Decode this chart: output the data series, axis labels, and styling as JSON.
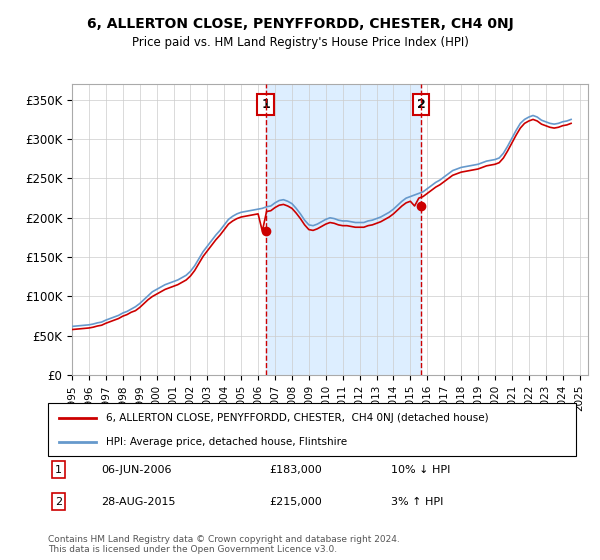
{
  "title": "6, ALLERTON CLOSE, PENYFFORDD, CHESTER, CH4 0NJ",
  "subtitle": "Price paid vs. HM Land Registry's House Price Index (HPI)",
  "ylabel": "",
  "ylim": [
    0,
    370000
  ],
  "yticks": [
    0,
    50000,
    100000,
    150000,
    200000,
    250000,
    300000,
    350000
  ],
  "ytick_labels": [
    "£0",
    "£50K",
    "£100K",
    "£150K",
    "£200K",
    "£250K",
    "£300K",
    "£350K"
  ],
  "xlim_start": 1995.0,
  "xlim_end": 2025.5,
  "sale1_date": 2006.44,
  "sale1_price": 183000,
  "sale1_label": "1",
  "sale2_date": 2015.65,
  "sale2_price": 215000,
  "sale2_label": "2",
  "legend_line1": "6, ALLERTON CLOSE, PENYFFORDD, CHESTER,  CH4 0NJ (detached house)",
  "legend_line2": "HPI: Average price, detached house, Flintshire",
  "annotation1": "1     06-JUN-2006          £183,000          10% ↓ HPI",
  "annotation2": "2     28-AUG-2015          £215,000          3% ↑ HPI",
  "footer": "Contains HM Land Registry data © Crown copyright and database right 2024.\nThis data is licensed under the Open Government Licence v3.0.",
  "red_color": "#cc0000",
  "blue_color": "#6699cc",
  "shade_color": "#ddeeff",
  "marker_box_color": "#cc0000",
  "grid_color": "#cccccc",
  "hpi_data_x": [
    1995.0,
    1995.25,
    1995.5,
    1995.75,
    1996.0,
    1996.25,
    1996.5,
    1996.75,
    1997.0,
    1997.25,
    1997.5,
    1997.75,
    1998.0,
    1998.25,
    1998.5,
    1998.75,
    1999.0,
    1999.25,
    1999.5,
    1999.75,
    2000.0,
    2000.25,
    2000.5,
    2000.75,
    2001.0,
    2001.25,
    2001.5,
    2001.75,
    2002.0,
    2002.25,
    2002.5,
    2002.75,
    2003.0,
    2003.25,
    2003.5,
    2003.75,
    2004.0,
    2004.25,
    2004.5,
    2004.75,
    2005.0,
    2005.25,
    2005.5,
    2005.75,
    2006.0,
    2006.25,
    2006.5,
    2006.75,
    2007.0,
    2007.25,
    2007.5,
    2007.75,
    2008.0,
    2008.25,
    2008.5,
    2008.75,
    2009.0,
    2009.25,
    2009.5,
    2009.75,
    2010.0,
    2010.25,
    2010.5,
    2010.75,
    2011.0,
    2011.25,
    2011.5,
    2011.75,
    2012.0,
    2012.25,
    2012.5,
    2012.75,
    2013.0,
    2013.25,
    2013.5,
    2013.75,
    2014.0,
    2014.25,
    2014.5,
    2014.75,
    2015.0,
    2015.25,
    2015.5,
    2015.75,
    2016.0,
    2016.25,
    2016.5,
    2016.75,
    2017.0,
    2017.25,
    2017.5,
    2017.75,
    2018.0,
    2018.25,
    2018.5,
    2018.75,
    2019.0,
    2019.25,
    2019.5,
    2019.75,
    2020.0,
    2020.25,
    2020.5,
    2020.75,
    2021.0,
    2021.25,
    2021.5,
    2021.75,
    2022.0,
    2022.25,
    2022.5,
    2022.75,
    2023.0,
    2023.25,
    2023.5,
    2023.75,
    2024.0,
    2024.25,
    2024.5
  ],
  "hpi_data_y": [
    62000,
    62500,
    63000,
    63500,
    64000,
    65000,
    66500,
    67500,
    70000,
    72000,
    74000,
    76000,
    79000,
    81000,
    84000,
    87000,
    91000,
    96000,
    101000,
    106000,
    109000,
    112000,
    115000,
    117000,
    119000,
    121000,
    124000,
    127000,
    132000,
    139000,
    148000,
    157000,
    164000,
    171000,
    178000,
    184000,
    191000,
    198000,
    202000,
    205000,
    207000,
    208000,
    209000,
    210000,
    211000,
    212000,
    214000,
    215000,
    219000,
    222000,
    223000,
    221000,
    218000,
    212000,
    205000,
    197000,
    191000,
    190000,
    192000,
    195000,
    198000,
    200000,
    199000,
    197000,
    196000,
    196000,
    195000,
    194000,
    194000,
    194000,
    196000,
    197000,
    199000,
    201000,
    204000,
    207000,
    211000,
    216000,
    221000,
    225000,
    227000,
    229000,
    231000,
    233000,
    237000,
    241000,
    245000,
    248000,
    252000,
    256000,
    260000,
    262000,
    264000,
    265000,
    266000,
    267000,
    268000,
    270000,
    272000,
    273000,
    274000,
    276000,
    282000,
    291000,
    301000,
    311000,
    320000,
    325000,
    328000,
    330000,
    328000,
    324000,
    322000,
    320000,
    319000,
    320000,
    322000,
    323000,
    325000
  ],
  "price_data_x": [
    1995.0,
    1995.25,
    1995.5,
    1995.75,
    1996.0,
    1996.25,
    1996.5,
    1996.75,
    1997.0,
    1997.25,
    1997.5,
    1997.75,
    1998.0,
    1998.25,
    1998.5,
    1998.75,
    1999.0,
    1999.25,
    1999.5,
    1999.75,
    2000.0,
    2000.25,
    2000.5,
    2000.75,
    2001.0,
    2001.25,
    2001.5,
    2001.75,
    2002.0,
    2002.25,
    2002.5,
    2002.75,
    2003.0,
    2003.25,
    2003.5,
    2003.75,
    2004.0,
    2004.25,
    2004.5,
    2004.75,
    2005.0,
    2005.25,
    2005.5,
    2005.75,
    2006.0,
    2006.25,
    2006.5,
    2006.75,
    2007.0,
    2007.25,
    2007.5,
    2007.75,
    2008.0,
    2008.25,
    2008.5,
    2008.75,
    2009.0,
    2009.25,
    2009.5,
    2009.75,
    2010.0,
    2010.25,
    2010.5,
    2010.75,
    2011.0,
    2011.25,
    2011.5,
    2011.75,
    2012.0,
    2012.25,
    2012.5,
    2012.75,
    2013.0,
    2013.25,
    2013.5,
    2013.75,
    2014.0,
    2014.25,
    2014.5,
    2014.75,
    2015.0,
    2015.25,
    2015.5,
    2015.75,
    2016.0,
    2016.25,
    2016.5,
    2016.75,
    2017.0,
    2017.25,
    2017.5,
    2017.75,
    2018.0,
    2018.25,
    2018.5,
    2018.75,
    2019.0,
    2019.25,
    2019.5,
    2019.75,
    2020.0,
    2020.25,
    2020.5,
    2020.75,
    2021.0,
    2021.25,
    2021.5,
    2021.75,
    2022.0,
    2022.25,
    2022.5,
    2022.75,
    2023.0,
    2023.25,
    2023.5,
    2023.75,
    2024.0,
    2024.25,
    2024.5
  ],
  "price_data_y": [
    58000,
    58500,
    59000,
    59500,
    60000,
    61000,
    62500,
    63500,
    66000,
    68000,
    70000,
    72000,
    75000,
    77000,
    80000,
    82000,
    86000,
    91000,
    96000,
    100000,
    103000,
    106000,
    109000,
    111000,
    113000,
    115000,
    118000,
    121000,
    126000,
    133000,
    142000,
    151000,
    158000,
    165000,
    172000,
    178000,
    185000,
    192000,
    196000,
    199000,
    201000,
    202000,
    203000,
    204000,
    205000,
    183000,
    208000,
    209000,
    213000,
    216000,
    217000,
    215000,
    212000,
    206000,
    199000,
    191000,
    185000,
    184000,
    186000,
    189000,
    192000,
    194000,
    193000,
    191000,
    190000,
    190000,
    189000,
    188000,
    188000,
    188000,
    190000,
    191000,
    193000,
    195000,
    198000,
    201000,
    205000,
    210000,
    215000,
    219000,
    221000,
    215000,
    225000,
    227000,
    231000,
    235000,
    239000,
    242000,
    246000,
    250000,
    254000,
    256000,
    258000,
    259000,
    260000,
    261000,
    262000,
    264000,
    266000,
    267000,
    268000,
    270000,
    276000,
    285000,
    295000,
    305000,
    314000,
    320000,
    323000,
    325000,
    323000,
    319000,
    317000,
    315000,
    314000,
    315000,
    317000,
    318000,
    320000
  ]
}
